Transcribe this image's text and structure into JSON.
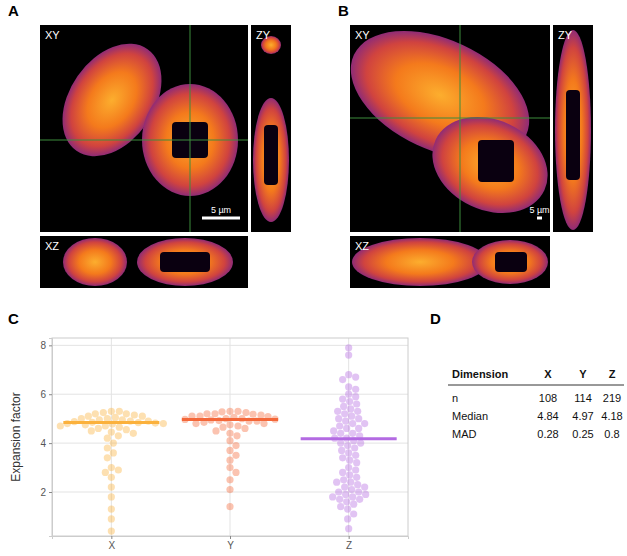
{
  "figure": {
    "panels": [
      {
        "label": "A",
        "views": [
          "XY",
          "ZY",
          "XZ"
        ],
        "scale_bar": "5 µm"
      },
      {
        "label": "B",
        "views": [
          "XY",
          "ZY",
          "XZ"
        ],
        "scale_bar": "5 µm"
      }
    ]
  },
  "chart_data": {
    "type": "beeswarm",
    "panel_label": "C",
    "y_label": "Expansion factor",
    "categories": [
      "X",
      "Y",
      "Z"
    ],
    "colors": [
      "#fbb13c",
      "#f4683a",
      "#b36ae2"
    ],
    "values": [
      [
        5.3,
        5.3,
        5.25,
        5.2,
        5.2,
        5.15,
        5.1,
        5.1,
        5.05,
        5.0,
        5.0,
        4.95,
        4.95,
        4.9,
        4.9,
        4.88,
        4.85,
        4.84,
        4.82,
        4.8,
        4.8,
        4.78,
        4.75,
        4.7,
        4.7,
        4.65,
        4.6,
        4.55,
        4.5,
        4.45,
        4.4,
        4.3,
        4.2,
        4.0,
        3.8,
        3.6,
        3.4,
        3.0,
        2.9,
        2.8,
        2.6,
        2.2,
        1.8,
        1.3,
        0.9,
        0.4
      ],
      [
        5.3,
        5.3,
        5.28,
        5.25,
        5.2,
        5.2,
        5.18,
        5.15,
        5.1,
        5.1,
        5.08,
        5.05,
        5.0,
        5.0,
        4.98,
        4.97,
        4.95,
        4.92,
        4.9,
        4.9,
        4.85,
        4.8,
        4.8,
        4.75,
        4.7,
        4.65,
        4.6,
        4.5,
        4.4,
        4.3,
        4.1,
        3.9,
        3.7,
        3.5,
        3.3,
        3.0,
        2.8,
        2.5,
        2.1,
        1.4
      ],
      [
        7.9,
        7.6,
        6.8,
        6.7,
        6.6,
        6.3,
        6.2,
        6.0,
        5.9,
        5.8,
        5.7,
        5.6,
        5.5,
        5.4,
        5.3,
        5.3,
        5.2,
        5.1,
        5.0,
        5.0,
        4.9,
        4.8,
        4.8,
        4.7,
        4.6,
        4.6,
        4.5,
        4.4,
        4.4,
        4.3,
        4.2,
        4.2,
        4.1,
        4.0,
        4.0,
        3.9,
        3.8,
        3.7,
        3.6,
        3.5,
        3.4,
        3.3,
        3.2,
        3.0,
        2.9,
        2.8,
        2.7,
        2.6,
        2.5,
        2.4,
        2.4,
        2.3,
        2.2,
        2.2,
        2.1,
        2.0,
        2.0,
        1.9,
        1.9,
        1.8,
        1.8,
        1.7,
        1.7,
        1.6,
        1.5,
        1.4,
        1.3,
        1.1,
        0.9,
        0.5
      ]
    ],
    "medians": [
      4.84,
      4.97,
      4.18
    ],
    "ylim": [
      0.2,
      8.3
    ],
    "yticks": [
      2,
      4,
      6,
      8
    ],
    "grid": true
  },
  "table": {
    "panel_label": "D",
    "columns": [
      "Dimension",
      "X",
      "Y",
      "Z"
    ],
    "rows": [
      [
        "n",
        108,
        114,
        219
      ],
      [
        "Median",
        4.84,
        4.97,
        4.18
      ],
      [
        "MAD",
        0.28,
        0.25,
        0.8
      ]
    ]
  }
}
